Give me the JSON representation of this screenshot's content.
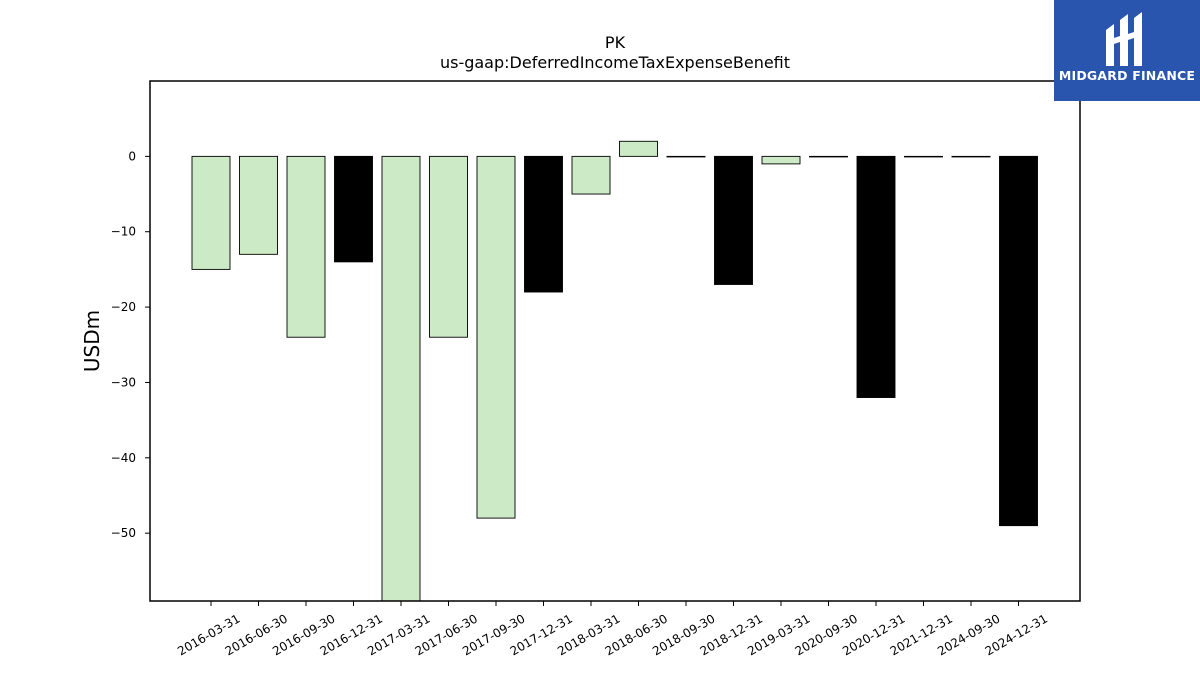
{
  "chart_data": {
    "type": "bar",
    "title": "PK",
    "subtitle": "us-gaap:DeferredIncomeTaxExpenseBenefit",
    "xlabel": "",
    "ylabel": "USDm",
    "ylim": [
      -59,
      10
    ],
    "yticks": [
      0,
      -10,
      -20,
      -30,
      -40,
      -50
    ],
    "grid": false,
    "categories": [
      "2016-03-31",
      "2016-06-30",
      "2016-09-30",
      "2016-12-31",
      "2017-03-31",
      "2017-06-30",
      "2017-09-30",
      "2017-12-31",
      "2018-03-31",
      "2018-06-30",
      "2018-09-30",
      "2018-12-31",
      "2019-03-31",
      "2020-09-30",
      "2020-12-31",
      "2021-12-31",
      "2024-09-30",
      "2024-12-31"
    ],
    "values": [
      -15,
      -13,
      -24,
      -14,
      -59,
      -24,
      -48,
      -18,
      -5,
      2,
      0,
      -17,
      -1,
      0,
      -32,
      0,
      0,
      -49
    ],
    "bar_colors": [
      "#cdeac7",
      "#cdeac7",
      "#cdeac7",
      "#000000",
      "#cdeac7",
      "#cdeac7",
      "#cdeac7",
      "#000000",
      "#cdeac7",
      "#cdeac7",
      "#cdeac7",
      "#000000",
      "#cdeac7",
      "#cdeac7",
      "#000000",
      "#000000",
      "#000000",
      "#000000"
    ]
  },
  "logo": {
    "text": "MIDGARD FINANCE",
    "color": "#2a55ae"
  }
}
